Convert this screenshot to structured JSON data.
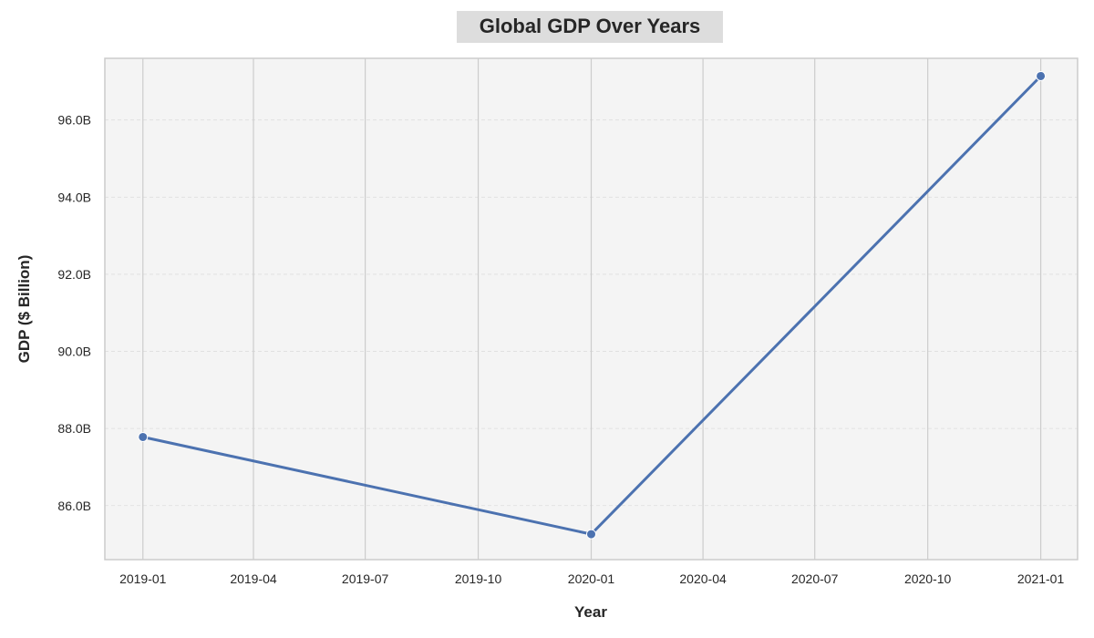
{
  "chart_data": {
    "type": "line",
    "title": "Global GDP Over Years",
    "xlabel": "Year",
    "ylabel": "GDP ($ Billion)",
    "x_type": "date",
    "x_range": [
      "2018-12-01",
      "2021-01-31"
    ],
    "y_range": [
      84.6,
      97.6
    ],
    "x_ticks": [
      "2019-01",
      "2019-04",
      "2019-07",
      "2019-10",
      "2020-01",
      "2020-04",
      "2020-07",
      "2020-10",
      "2021-01"
    ],
    "y_ticks": [
      86.0,
      88.0,
      90.0,
      92.0,
      94.0,
      96.0
    ],
    "y_tick_labels": [
      "86.0B",
      "88.0B",
      "90.0B",
      "92.0B",
      "94.0B",
      "96.0B"
    ],
    "x": [
      "2019-01-01",
      "2020-01-01",
      "2021-01-01"
    ],
    "series": [
      {
        "values": [
          87.78,
          85.26,
          97.14
        ],
        "color": "#4c72b0",
        "marker": "circle"
      }
    ],
    "grid": true,
    "colors": {
      "plot_background": "#f4f4f4",
      "title_box": "#dddddd",
      "vertical_grid": "#cccccc",
      "horizontal_grid": "#dddddd",
      "axes_border": "#cccccc"
    }
  }
}
